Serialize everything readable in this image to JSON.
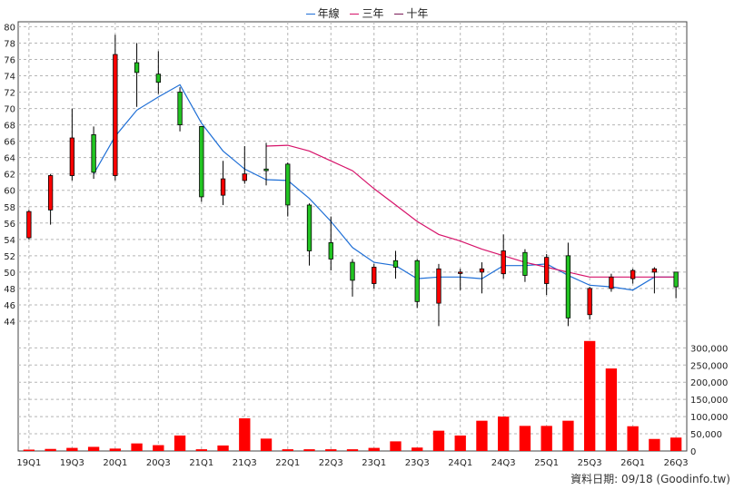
{
  "legend": [
    {
      "label": "年線",
      "color": "#1f6fd6"
    },
    {
      "label": "三年",
      "color": "#d6136a"
    },
    {
      "label": "十年",
      "color": "#7a1b57"
    }
  ],
  "source_note": "資料日期: 09/18 (Goodinfo.tw)",
  "chart_data": {
    "type": "candlestick",
    "title": "",
    "price_axis": {
      "min": 44,
      "max": 80,
      "ticks": [
        44,
        46,
        48,
        50,
        52,
        54,
        56,
        58,
        60,
        62,
        64,
        66,
        68,
        70,
        72,
        74,
        76,
        78,
        80
      ]
    },
    "volume_axis": {
      "min": 0,
      "max": 300000,
      "ticks": [
        "0",
        "50,000",
        "100,000",
        "150,000",
        "200,000",
        "250,000",
        "300,000"
      ],
      "tick_values": [
        0,
        50000,
        100000,
        150000,
        200000,
        250000,
        300000
      ]
    },
    "x_tick_labels": [
      "19Q1",
      "19Q3",
      "20Q1",
      "20Q3",
      "21Q1",
      "21Q3",
      "22Q1",
      "22Q3",
      "23Q1",
      "23Q3",
      "24Q1",
      "24Q3",
      "25Q1",
      "25Q3",
      "26Q1",
      "26Q3"
    ],
    "grid": true,
    "up_color": "#ff0000",
    "down_color": "#22c422",
    "candles": [
      {
        "o": 54.2,
        "h": 57.6,
        "l": 54.0,
        "c": 57.4,
        "v": 4000
      },
      {
        "o": 57.6,
        "h": 62.0,
        "l": 55.8,
        "c": 61.8,
        "v": 6000
      },
      {
        "o": 61.8,
        "h": 70.0,
        "l": 61.2,
        "c": 66.4,
        "v": 9000
      },
      {
        "o": 66.8,
        "h": 67.8,
        "l": 61.4,
        "c": 62.2,
        "v": 12000
      },
      {
        "o": 61.8,
        "h": 79.0,
        "l": 61.2,
        "c": 76.6,
        "v": 7000
      },
      {
        "o": 75.6,
        "h": 78.0,
        "l": 70.2,
        "c": 74.4,
        "v": 22000
      },
      {
        "o": 74.2,
        "h": 77.0,
        "l": 71.8,
        "c": 73.2,
        "v": 17000
      },
      {
        "o": 72.0,
        "h": 72.6,
        "l": 67.2,
        "c": 68.0,
        "v": 45000
      },
      {
        "o": 67.8,
        "h": 67.8,
        "l": 58.6,
        "c": 59.2,
        "v": 5000
      },
      {
        "o": 59.4,
        "h": 63.6,
        "l": 58.2,
        "c": 61.4,
        "v": 16000
      },
      {
        "o": 61.2,
        "h": 65.4,
        "l": 60.8,
        "c": 62.0,
        "v": 95000
      },
      {
        "o": 62.6,
        "h": 65.8,
        "l": 60.6,
        "c": 62.4,
        "v": 36000
      },
      {
        "o": 63.2,
        "h": 63.4,
        "l": 56.8,
        "c": 58.2,
        "v": 5000
      },
      {
        "o": 58.2,
        "h": 58.4,
        "l": 50.8,
        "c": 52.6,
        "v": 5000
      },
      {
        "o": 53.6,
        "h": 56.8,
        "l": 50.2,
        "c": 51.6,
        "v": 5000
      },
      {
        "o": 51.2,
        "h": 51.6,
        "l": 47.0,
        "c": 49.0,
        "v": 5000
      },
      {
        "o": 48.6,
        "h": 51.0,
        "l": 48.0,
        "c": 50.6,
        "v": 9000
      },
      {
        "o": 51.4,
        "h": 52.6,
        "l": 49.2,
        "c": 50.6,
        "v": 28000
      },
      {
        "o": 51.4,
        "h": 51.6,
        "l": 45.6,
        "c": 46.4,
        "v": 10000
      },
      {
        "o": 46.2,
        "h": 51.0,
        "l": 43.4,
        "c": 50.4,
        "v": 59000
      },
      {
        "o": 50.0,
        "h": 50.4,
        "l": 47.8,
        "c": 50.0,
        "v": 45000
      },
      {
        "o": 50.0,
        "h": 51.2,
        "l": 47.4,
        "c": 50.4,
        "v": 88000
      },
      {
        "o": 49.8,
        "h": 54.6,
        "l": 49.2,
        "c": 52.6,
        "v": 100000
      },
      {
        "o": 52.4,
        "h": 52.8,
        "l": 48.8,
        "c": 49.6,
        "v": 73000
      },
      {
        "o": 48.6,
        "h": 52.2,
        "l": 47.2,
        "c": 51.8,
        "v": 73000
      },
      {
        "o": 52.0,
        "h": 53.6,
        "l": 43.4,
        "c": 44.4,
        "v": 88000
      },
      {
        "o": 44.8,
        "h": 48.2,
        "l": 44.2,
        "c": 48.0,
        "v": 320000
      },
      {
        "o": 48.0,
        "h": 49.8,
        "l": 47.6,
        "c": 49.4,
        "v": 240000
      },
      {
        "o": 49.2,
        "h": 50.4,
        "l": 48.6,
        "c": 50.2,
        "v": 72000
      },
      {
        "o": 50.0,
        "h": 50.6,
        "l": 47.4,
        "c": 50.4,
        "v": 35000
      },
      {
        "o": 50.0,
        "h": 50.0,
        "l": 46.8,
        "c": 48.2,
        "v": 39000
      }
    ],
    "series": [
      {
        "legend_index": 0,
        "color": "#1f6fd6",
        "points": [
          {
            "i": 3,
            "v": 62.0
          },
          {
            "i": 4,
            "v": 66.6
          },
          {
            "i": 5,
            "v": 69.8
          },
          {
            "i": 6,
            "v": 71.4
          },
          {
            "i": 7,
            "v": 72.9
          },
          {
            "i": 8,
            "v": 68.2
          },
          {
            "i": 9,
            "v": 64.8
          },
          {
            "i": 10,
            "v": 62.6
          },
          {
            "i": 11,
            "v": 61.3
          },
          {
            "i": 12,
            "v": 61.2
          },
          {
            "i": 13,
            "v": 59.0
          },
          {
            "i": 14,
            "v": 56.2
          },
          {
            "i": 15,
            "v": 53.0
          },
          {
            "i": 16,
            "v": 51.2
          },
          {
            "i": 17,
            "v": 50.8
          },
          {
            "i": 18,
            "v": 49.2
          },
          {
            "i": 19,
            "v": 49.4
          },
          {
            "i": 20,
            "v": 49.4
          },
          {
            "i": 21,
            "v": 49.2
          },
          {
            "i": 22,
            "v": 50.8
          },
          {
            "i": 23,
            "v": 50.8
          },
          {
            "i": 24,
            "v": 51.0
          },
          {
            "i": 25,
            "v": 49.6
          },
          {
            "i": 26,
            "v": 48.4
          },
          {
            "i": 27,
            "v": 48.2
          },
          {
            "i": 28,
            "v": 47.8
          },
          {
            "i": 29,
            "v": 49.4
          },
          {
            "i": 30,
            "v": 49.4
          }
        ]
      },
      {
        "legend_index": 1,
        "color": "#d6136a",
        "points": [
          {
            "i": 11,
            "v": 65.4
          },
          {
            "i": 12,
            "v": 65.5
          },
          {
            "i": 13,
            "v": 64.8
          },
          {
            "i": 14,
            "v": 63.6
          },
          {
            "i": 15,
            "v": 62.4
          },
          {
            "i": 16,
            "v": 60.2
          },
          {
            "i": 17,
            "v": 58.2
          },
          {
            "i": 18,
            "v": 56.2
          },
          {
            "i": 19,
            "v": 54.6
          },
          {
            "i": 20,
            "v": 53.8
          },
          {
            "i": 21,
            "v": 52.8
          },
          {
            "i": 22,
            "v": 52.0
          },
          {
            "i": 23,
            "v": 51.2
          },
          {
            "i": 24,
            "v": 50.6
          },
          {
            "i": 25,
            "v": 50.0
          },
          {
            "i": 26,
            "v": 49.4
          },
          {
            "i": 27,
            "v": 49.4
          },
          {
            "i": 28,
            "v": 49.4
          },
          {
            "i": 29,
            "v": 49.4
          },
          {
            "i": 30,
            "v": 49.4
          }
        ]
      }
    ]
  }
}
